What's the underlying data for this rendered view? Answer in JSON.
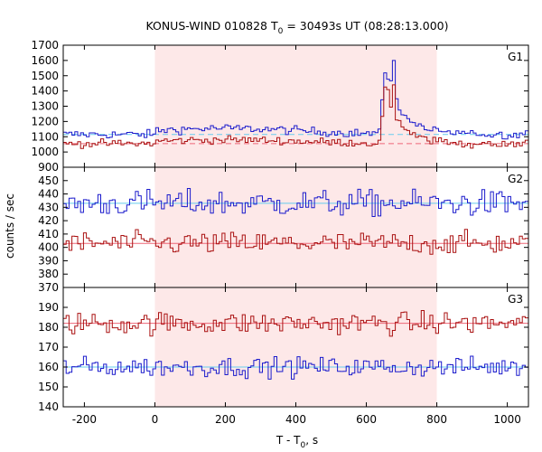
{
  "chart_data": {
    "type": "line",
    "title": "KONUS-WIND 010828 T0 = 30493s UT (08:28:13.000)",
    "title_parts": {
      "prefix": "KONUS-WIND 010828 T",
      "sub": "0",
      "suffix": " = 30493s UT (08:28:13.000)"
    },
    "xlabel_parts": {
      "prefix": "T - T",
      "sub": "0",
      "suffix": ", s"
    },
    "ylabel": "counts / sec",
    "xlim": [
      -260,
      1060
    ],
    "xticks": [
      -200,
      0,
      200,
      400,
      600,
      800,
      1000
    ],
    "xtick_labels": [
      "-200",
      "0",
      "200",
      "400",
      "600",
      "800",
      "1000"
    ],
    "shaded_interval": [
      0,
      800
    ],
    "shade_color": "#fde8e8",
    "grid": false,
    "colors": {
      "blue": "#1a1acc",
      "red": "#aa1111",
      "blue_bg": "#66ccee",
      "red_bg": "#ee6677"
    },
    "panels": [
      {
        "label": "G1",
        "ylim": [
          900,
          1700
        ],
        "yticks": [
          900,
          1000,
          1100,
          1200,
          1300,
          1400,
          1500,
          1600,
          1700
        ],
        "ytick_labels": [
          "900",
          "1000",
          "1100",
          "1200",
          "1300",
          "1400",
          "1500",
          "1600",
          "1700"
        ],
        "backgrounds": [
          {
            "series": "blue",
            "value": 1115
          },
          {
            "series": "red",
            "value": 1055
          }
        ],
        "series": [
          {
            "color": "blue",
            "base": 1115,
            "noise": 20,
            "bump": 40,
            "peak": 1600,
            "peak_x": 680
          },
          {
            "color": "red",
            "base": 1055,
            "noise": 18,
            "bump": 25,
            "peak": 1440,
            "peak_x": 680
          }
        ]
      },
      {
        "label": "G2",
        "ylim": [
          370,
          460
        ],
        "yticks": [
          370,
          380,
          390,
          400,
          410,
          420,
          430,
          440,
          450
        ],
        "ytick_labels": [
          "370",
          "380",
          "390",
          "400",
          "410",
          "420",
          "430",
          "440",
          "450"
        ],
        "backgrounds": [
          {
            "series": "blue",
            "value": 433
          },
          {
            "series": "red",
            "value": 403
          }
        ],
        "series": [
          {
            "color": "blue",
            "base": 433,
            "noise": 7
          },
          {
            "color": "red",
            "base": 403,
            "noise": 6
          }
        ]
      },
      {
        "label": "G3",
        "ylim": [
          140,
          200
        ],
        "yticks": [
          140,
          150,
          160,
          170,
          180,
          190
        ],
        "ytick_labels": [
          "140",
          "150",
          "160",
          "170",
          "180",
          "190"
        ],
        "backgrounds": [
          {
            "series": "red",
            "value": 182
          },
          {
            "series": "blue",
            "value": 160
          }
        ],
        "series": [
          {
            "color": "red",
            "base": 182,
            "noise": 4
          },
          {
            "color": "blue",
            "base": 160,
            "noise": 3.5
          }
        ]
      }
    ]
  }
}
